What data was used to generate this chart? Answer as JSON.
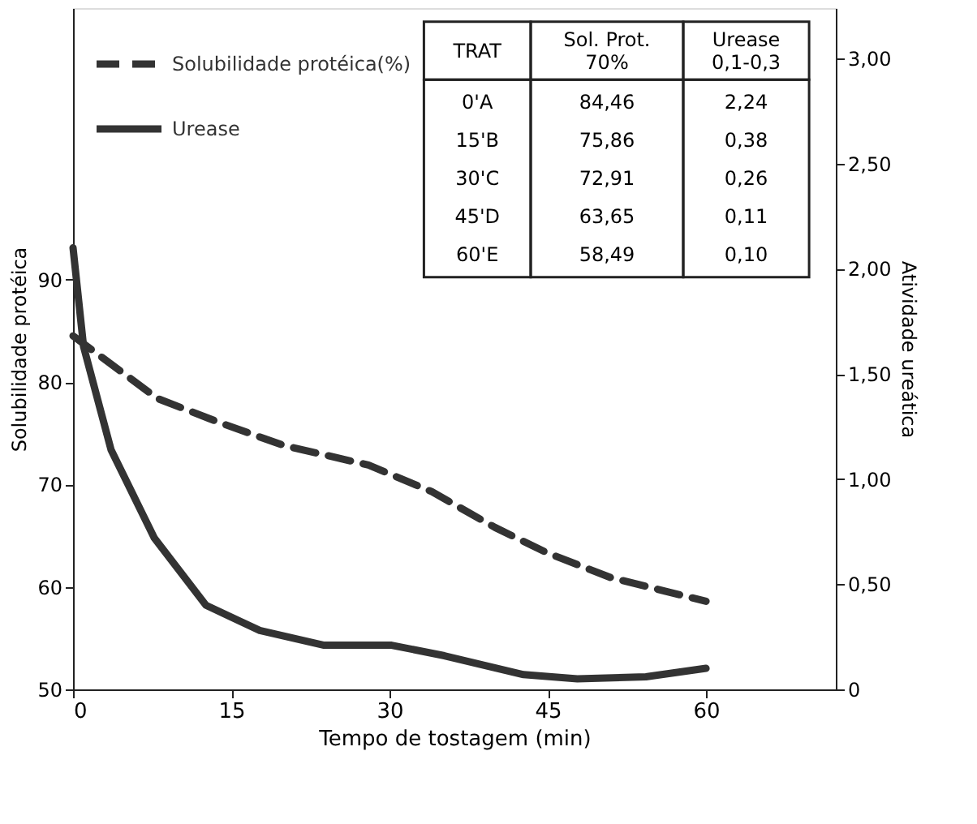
{
  "chart_data": {
    "type": "line",
    "xlabel": "Tempo de tostagem (min)",
    "ylabel": "Solubilidade protéica",
    "y2label": "Atividade ureática",
    "xlim": [
      0,
      72.3
    ],
    "xticks": [
      0,
      15,
      30,
      45,
      60
    ],
    "ylim": [
      50,
      116.5
    ],
    "yticks": [
      50,
      60,
      70,
      80,
      90
    ],
    "y2lim": [
      0,
      3.24
    ],
    "y2ticks": [
      0,
      {
        "value": 0.5,
        "label": "0,50"
      },
      {
        "value": 1,
        "label": "1,00"
      },
      {
        "value": 1.5,
        "label": "1,50"
      },
      {
        "value": 2,
        "label": "2,00"
      },
      {
        "value": 2.5,
        "label": "2,50"
      },
      {
        "value": 3,
        "label": "3,00"
      }
    ],
    "grid": false,
    "legend": "top left",
    "series": [
      {
        "name": "Solubilidade protéica(%)",
        "color": "#333333",
        "line_style": "dashed",
        "axis": "y",
        "x": [
          0,
          8,
          14,
          20,
          28,
          34,
          40,
          45,
          51,
          60
        ],
        "values": [
          84.5,
          78.4,
          76.0,
          73.8,
          71.9,
          69.3,
          65.8,
          63.3,
          60.9,
          58.6
        ]
      },
      {
        "name": "Urease",
        "color": "#333333",
        "line_style": "solid",
        "axis": "y2",
        "x": [
          0,
          1,
          3.6,
          7.7,
          12.6,
          17.7,
          23.8,
          30.2,
          35.2,
          42.7,
          47.8,
          54.3,
          60
        ],
        "values": [
          2.1,
          1.63,
          1.14,
          0.72,
          0.4,
          0.28,
          0.21,
          0.21,
          0.16,
          0.07,
          0.05,
          0.06,
          0.1
        ]
      }
    ],
    "annotations": [
      "TRAT",
      "Sol. Prot.\n70%",
      "Urease\n0,1-0,3",
      "0'A",
      "84,46",
      "2,24",
      "15'B",
      "75,86",
      "0,38",
      "30'C",
      "72,91",
      "0,26",
      "45'D",
      "63,65",
      "0,11",
      "60'E",
      "58,49",
      "0,10"
    ]
  }
}
